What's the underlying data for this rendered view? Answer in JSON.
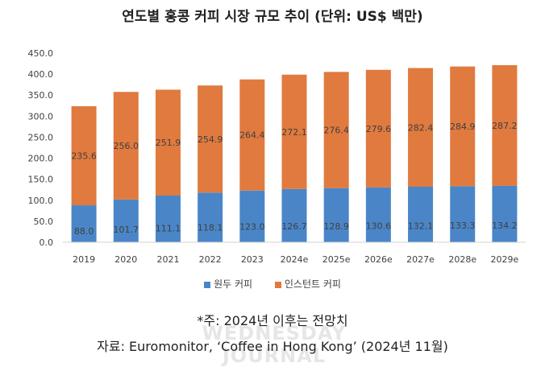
{
  "watermark": "WEDNESDAY JOURNAL",
  "note": "*주: 2024년 이후는 전망치",
  "source": "자료: Euromonitor, ‘Coffee in Hong Kong’ (2024년 11월)",
  "colors": {
    "bean": "#4a86c7",
    "instant": "#e07a3e",
    "axis": "#d0d0d0"
  },
  "chart_data": {
    "type": "bar",
    "stacked": true,
    "title": "연도별 홍콩 커피 시장 규모 추이 (단위: US$ 백만)",
    "categories": [
      "2019",
      "2020",
      "2021",
      "2022",
      "2023",
      "2024e",
      "2025e",
      "2026e",
      "2027e",
      "2028e",
      "2029e"
    ],
    "series": [
      {
        "name": "원두 커피",
        "values": [
          88.0,
          101.7,
          111.1,
          118.1,
          123.0,
          126.7,
          128.9,
          130.6,
          132.1,
          133.3,
          134.2
        ]
      },
      {
        "name": "인스턴트 커피",
        "values": [
          235.6,
          256.0,
          251.9,
          254.9,
          264.4,
          272.1,
          276.4,
          279.6,
          282.4,
          284.9,
          287.2
        ]
      }
    ],
    "ylim": [
      0,
      450
    ],
    "yticks": [
      "0.0",
      "50.0",
      "100.0",
      "150.0",
      "200.0",
      "250.0",
      "300.0",
      "350.0",
      "400.0",
      "450.0"
    ],
    "grid": false,
    "legend": "bottom"
  }
}
